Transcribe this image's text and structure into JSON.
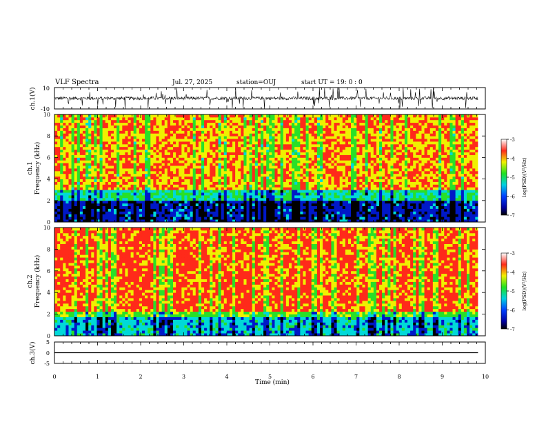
{
  "header": {
    "title": "VLF Spectra",
    "date": "Jul. 27, 2025",
    "station": "station=OUJ",
    "start": "start  UT =   19: 0  : 0"
  },
  "chart_data": [
    {
      "type": "line",
      "panel": "ch1-waveform",
      "ylabel": "ch.1(V)",
      "ylim": [
        -10,
        10
      ],
      "yticks": [
        "10",
        "-10"
      ],
      "description_series": "noisy waveform centred near 0 V with sferic spikes"
    },
    {
      "type": "heatmap",
      "panel": "ch1-spectrogram",
      "ylabel_top": "ch.1",
      "ylabel": "Frequency  (kHz)",
      "ylim": [
        0,
        10
      ],
      "yticks": [
        "0",
        "2",
        "4",
        "6",
        "8",
        "10"
      ],
      "colorbar": {
        "label": "log(PSD)(V²/Hz)",
        "range": [
          -7,
          -3
        ],
        "ticks": [
          "-3",
          "-4",
          "-5",
          "-6",
          "-7"
        ]
      }
    },
    {
      "type": "heatmap",
      "panel": "ch2-spectrogram",
      "ylabel_top": "ch.2",
      "ylabel": "Frequency  (kHz)",
      "ylim": [
        0,
        10
      ],
      "yticks": [
        "0",
        "2",
        "4",
        "6",
        "8",
        "10"
      ],
      "colorbar": {
        "label": "log(PSD)(V²/Hz)",
        "range": [
          -7,
          -3
        ],
        "ticks": [
          "-3",
          "-4",
          "-5",
          "-6",
          "-7"
        ]
      }
    },
    {
      "type": "line",
      "panel": "ch3-waveform",
      "ylabel": "ch.3(V)",
      "ylim": [
        -5,
        5
      ],
      "yticks": [
        "5",
        "0",
        "-5"
      ],
      "values_x": [
        0,
        9.83
      ],
      "values_y": [
        0,
        0
      ]
    }
  ],
  "xaxis": {
    "label": "Time  (min)",
    "range": [
      0,
      10
    ],
    "ticks": [
      "0",
      "1",
      "2",
      "3",
      "4",
      "5",
      "6",
      "7",
      "8",
      "9",
      "10"
    ]
  },
  "colors": {
    "red": "#ff2a1a",
    "yellow": "#f0f000",
    "green": "#28e028",
    "cyan": "#00d8d8",
    "blue": "#0018c8",
    "black": "#000000"
  }
}
